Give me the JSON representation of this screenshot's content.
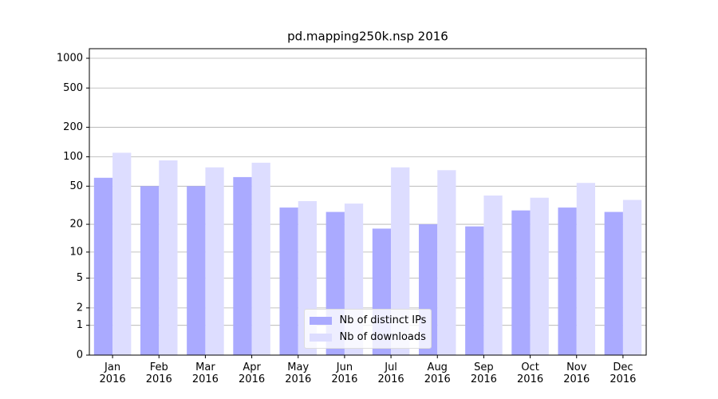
{
  "chart_data": {
    "type": "bar",
    "title": "pd.mapping250k.nsp 2016",
    "categories": [
      "Jan\n2016",
      "Feb\n2016",
      "Mar\n2016",
      "Apr\n2016",
      "May\n2016",
      "Jun\n2016",
      "Jul\n2016",
      "Aug\n2016",
      "Sep\n2016",
      "Oct\n2016",
      "Nov\n2016",
      "Dec\n2016"
    ],
    "series": [
      {
        "name": "Nb of distinct IPs",
        "color": "#aaaaff",
        "values": [
          61,
          50,
          50,
          62,
          30,
          27,
          18,
          20,
          19,
          28,
          30,
          27
        ]
      },
      {
        "name": "Nb of downloads",
        "color": "#ddddff",
        "values": [
          110,
          92,
          78,
          87,
          35,
          33,
          78,
          73,
          40,
          38,
          54,
          36
        ]
      }
    ],
    "yscale": "log1p",
    "ylim": [
      0,
      1250
    ],
    "yticks": [
      0,
      1,
      2,
      5,
      10,
      20,
      50,
      100,
      200,
      500,
      1000
    ],
    "grid": true,
    "legend": "lower center"
  }
}
